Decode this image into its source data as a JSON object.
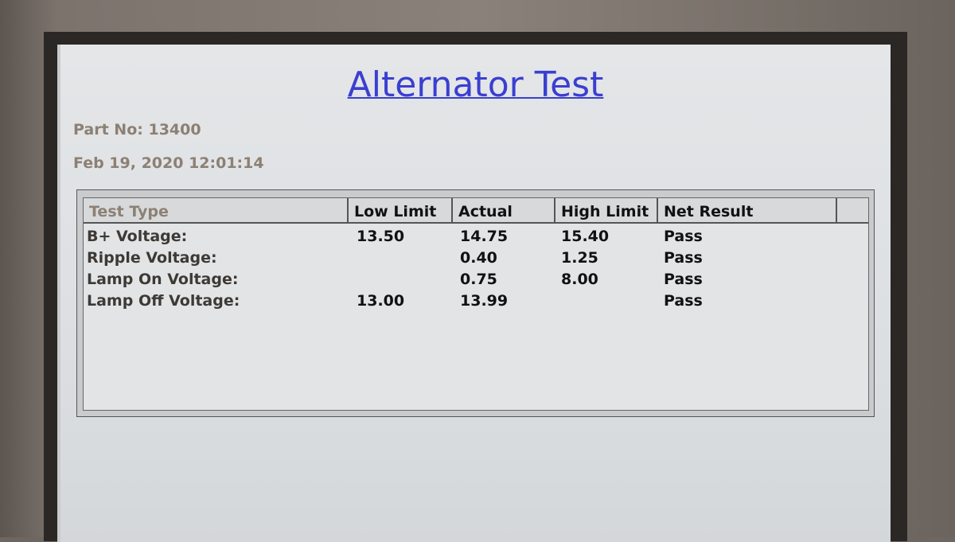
{
  "title": "Alternator Test",
  "part_no": "Part No: 13400",
  "datetime": "Feb 19, 2020 12:01:14",
  "table": {
    "columns": [
      "Test Type",
      "Low Limit",
      "Actual",
      "High Limit",
      "Net Result",
      ""
    ],
    "rows": [
      {
        "test": "B+ Voltage:",
        "low": "13.50",
        "actual": "14.75",
        "high": "15.40",
        "result": "Pass"
      },
      {
        "test": "Ripple Voltage:",
        "low": "",
        "actual": "0.40",
        "high": "1.25",
        "result": "Pass"
      },
      {
        "test": "Lamp On Voltage:",
        "low": "",
        "actual": "0.75",
        "high": "8.00",
        "result": "Pass"
      },
      {
        "test": "Lamp Off Voltage:",
        "low": "13.00",
        "actual": "13.99",
        "high": "",
        "result": "Pass"
      }
    ]
  },
  "colors": {
    "title": "#3a3fd0",
    "meta_text": "#8c8074"
  }
}
